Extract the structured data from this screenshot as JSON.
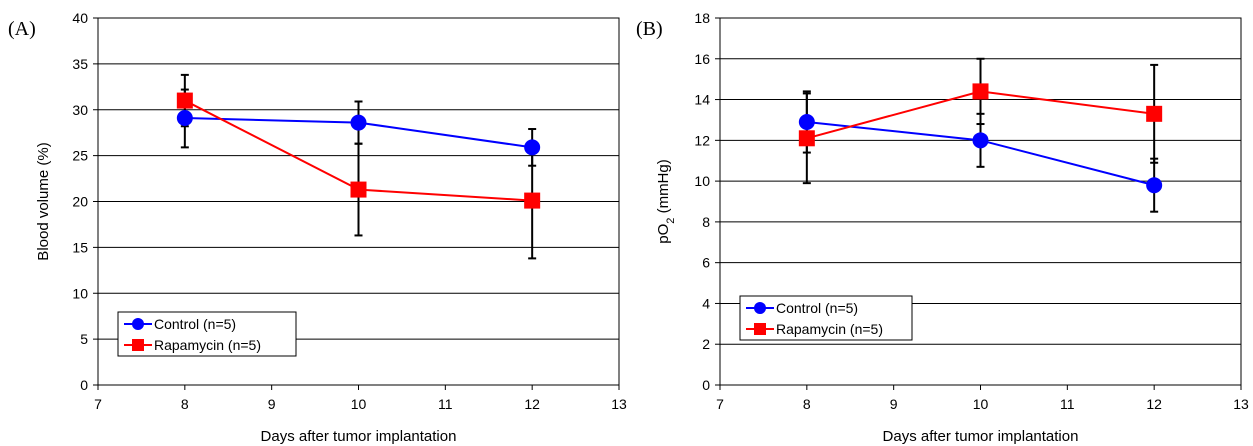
{
  "chart_data": [
    {
      "type": "line",
      "panel_label": "(A)",
      "xlabel": "Days after tumor implantation",
      "ylabel": "Blood volume (%)",
      "xlim": [
        7,
        13
      ],
      "ylim": [
        0,
        40
      ],
      "xticks": [
        7,
        8,
        9,
        10,
        11,
        12,
        13
      ],
      "yticks": [
        0,
        5,
        10,
        15,
        20,
        25,
        30,
        35,
        40
      ],
      "grid": "horizontal",
      "legend_position": "bottom-left",
      "series": [
        {
          "name": "Control (n=5)",
          "color": "#0000ff",
          "marker": "circle",
          "x": [
            8,
            10,
            12
          ],
          "y": [
            29.1,
            28.6,
            25.9
          ],
          "err_low": [
            3.2,
            2.3,
            2.0
          ],
          "err_high": [
            3.1,
            2.3,
            2.0
          ]
        },
        {
          "name": "Rapamycin (n=5)",
          "color": "#ff0000",
          "marker": "square",
          "x": [
            8,
            10,
            12
          ],
          "y": [
            31.0,
            21.3,
            20.1
          ],
          "err_low": [
            2.8,
            5.0,
            6.3
          ],
          "err_high": [
            2.8,
            5.0,
            6.3
          ]
        }
      ]
    },
    {
      "type": "line",
      "panel_label": "(B)",
      "xlabel": "Days after tumor implantation",
      "ylabel_main": "pO",
      "ylabel_sub": "2",
      "ylabel_tail": " (mmHg)",
      "xlim": [
        7,
        13
      ],
      "ylim": [
        0,
        18
      ],
      "xticks": [
        7,
        8,
        9,
        10,
        11,
        12,
        13
      ],
      "yticks": [
        0,
        2,
        4,
        6,
        8,
        10,
        12,
        14,
        16,
        18
      ],
      "grid": "horizontal",
      "legend_position": "bottom-left",
      "series": [
        {
          "name": "Control (n=5)",
          "color": "#0000ff",
          "marker": "circle",
          "x": [
            8,
            10,
            12
          ],
          "y": [
            12.9,
            12.0,
            9.8
          ],
          "err_low": [
            1.5,
            1.3,
            1.3
          ],
          "err_high": [
            1.5,
            1.3,
            1.3
          ]
        },
        {
          "name": "Rapamycin (n=5)",
          "color": "#ff0000",
          "marker": "square",
          "x": [
            8,
            10,
            12
          ],
          "y": [
            12.1,
            14.4,
            13.3
          ],
          "err_low": [
            2.2,
            1.6,
            2.4
          ],
          "err_high": [
            2.2,
            1.6,
            2.4
          ]
        }
      ]
    }
  ]
}
